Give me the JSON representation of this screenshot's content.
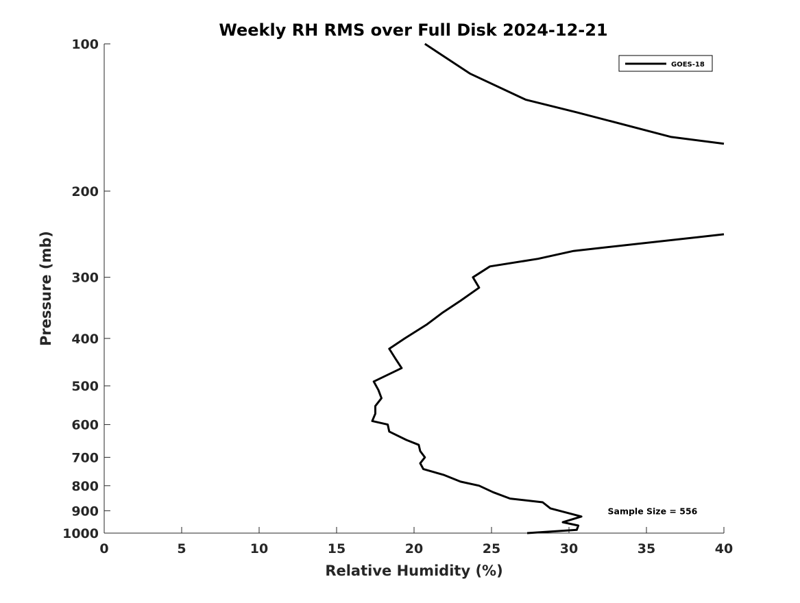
{
  "chart_data": {
    "type": "line",
    "title": "Weekly RH RMS over Full Disk 2024-12-21",
    "xlabel": "Relative Humidity (%)",
    "ylabel": "Pressure (mb)",
    "xlim": [
      0,
      40
    ],
    "ylim": [
      100,
      1000
    ],
    "y_scale": "log",
    "y_reversed": true,
    "x_ticks": [
      0,
      5,
      10,
      15,
      20,
      25,
      30,
      35,
      40
    ],
    "y_ticks": [
      100,
      200,
      300,
      400,
      500,
      600,
      700,
      800,
      900,
      1000
    ],
    "grid": false,
    "legend_position": "top-right",
    "series": [
      {
        "name": "GOES-18",
        "color": "#000000",
        "points": [
          {
            "x": 27.3,
            "y": 1000
          },
          {
            "x": 30.5,
            "y": 985
          },
          {
            "x": 30.6,
            "y": 965
          },
          {
            "x": 29.6,
            "y": 950
          },
          {
            "x": 30.8,
            "y": 925
          },
          {
            "x": 28.8,
            "y": 890
          },
          {
            "x": 28.3,
            "y": 865
          },
          {
            "x": 26.2,
            "y": 850
          },
          {
            "x": 25.1,
            "y": 825
          },
          {
            "x": 24.2,
            "y": 800
          },
          {
            "x": 23.0,
            "y": 785
          },
          {
            "x": 21.9,
            "y": 760
          },
          {
            "x": 20.6,
            "y": 740
          },
          {
            "x": 20.4,
            "y": 720
          },
          {
            "x": 20.7,
            "y": 700
          },
          {
            "x": 20.4,
            "y": 680
          },
          {
            "x": 20.3,
            "y": 660
          },
          {
            "x": 19.5,
            "y": 645
          },
          {
            "x": 18.4,
            "y": 620
          },
          {
            "x": 18.3,
            "y": 600
          },
          {
            "x": 17.3,
            "y": 590
          },
          {
            "x": 17.5,
            "y": 570
          },
          {
            "x": 17.5,
            "y": 550
          },
          {
            "x": 17.9,
            "y": 530
          },
          {
            "x": 17.7,
            "y": 510
          },
          {
            "x": 17.4,
            "y": 490
          },
          {
            "x": 19.2,
            "y": 460
          },
          {
            "x": 18.8,
            "y": 440
          },
          {
            "x": 18.4,
            "y": 420
          },
          {
            "x": 19.4,
            "y": 400
          },
          {
            "x": 20.8,
            "y": 375
          },
          {
            "x": 21.8,
            "y": 355
          },
          {
            "x": 23.0,
            "y": 335
          },
          {
            "x": 24.2,
            "y": 315
          },
          {
            "x": 23.8,
            "y": 300
          },
          {
            "x": 24.9,
            "y": 285
          },
          {
            "x": 28.0,
            "y": 275
          },
          {
            "x": 30.3,
            "y": 265
          },
          {
            "x": 40.0,
            "y": 245
          }
        ]
      },
      {
        "name": "GOES-18",
        "color": "#000000",
        "points": [
          {
            "x": 20.7,
            "y": 100
          },
          {
            "x": 23.6,
            "y": 115
          },
          {
            "x": 27.2,
            "y": 130
          },
          {
            "x": 30.5,
            "y": 138
          },
          {
            "x": 36.6,
            "y": 155
          },
          {
            "x": 40.0,
            "y": 160
          }
        ]
      }
    ],
    "legend": [
      {
        "label": "GOES-18",
        "color": "#000000"
      }
    ],
    "annotations": [
      {
        "text": "Sample Size = 556",
        "x": 32.5,
        "y": 900
      }
    ]
  }
}
